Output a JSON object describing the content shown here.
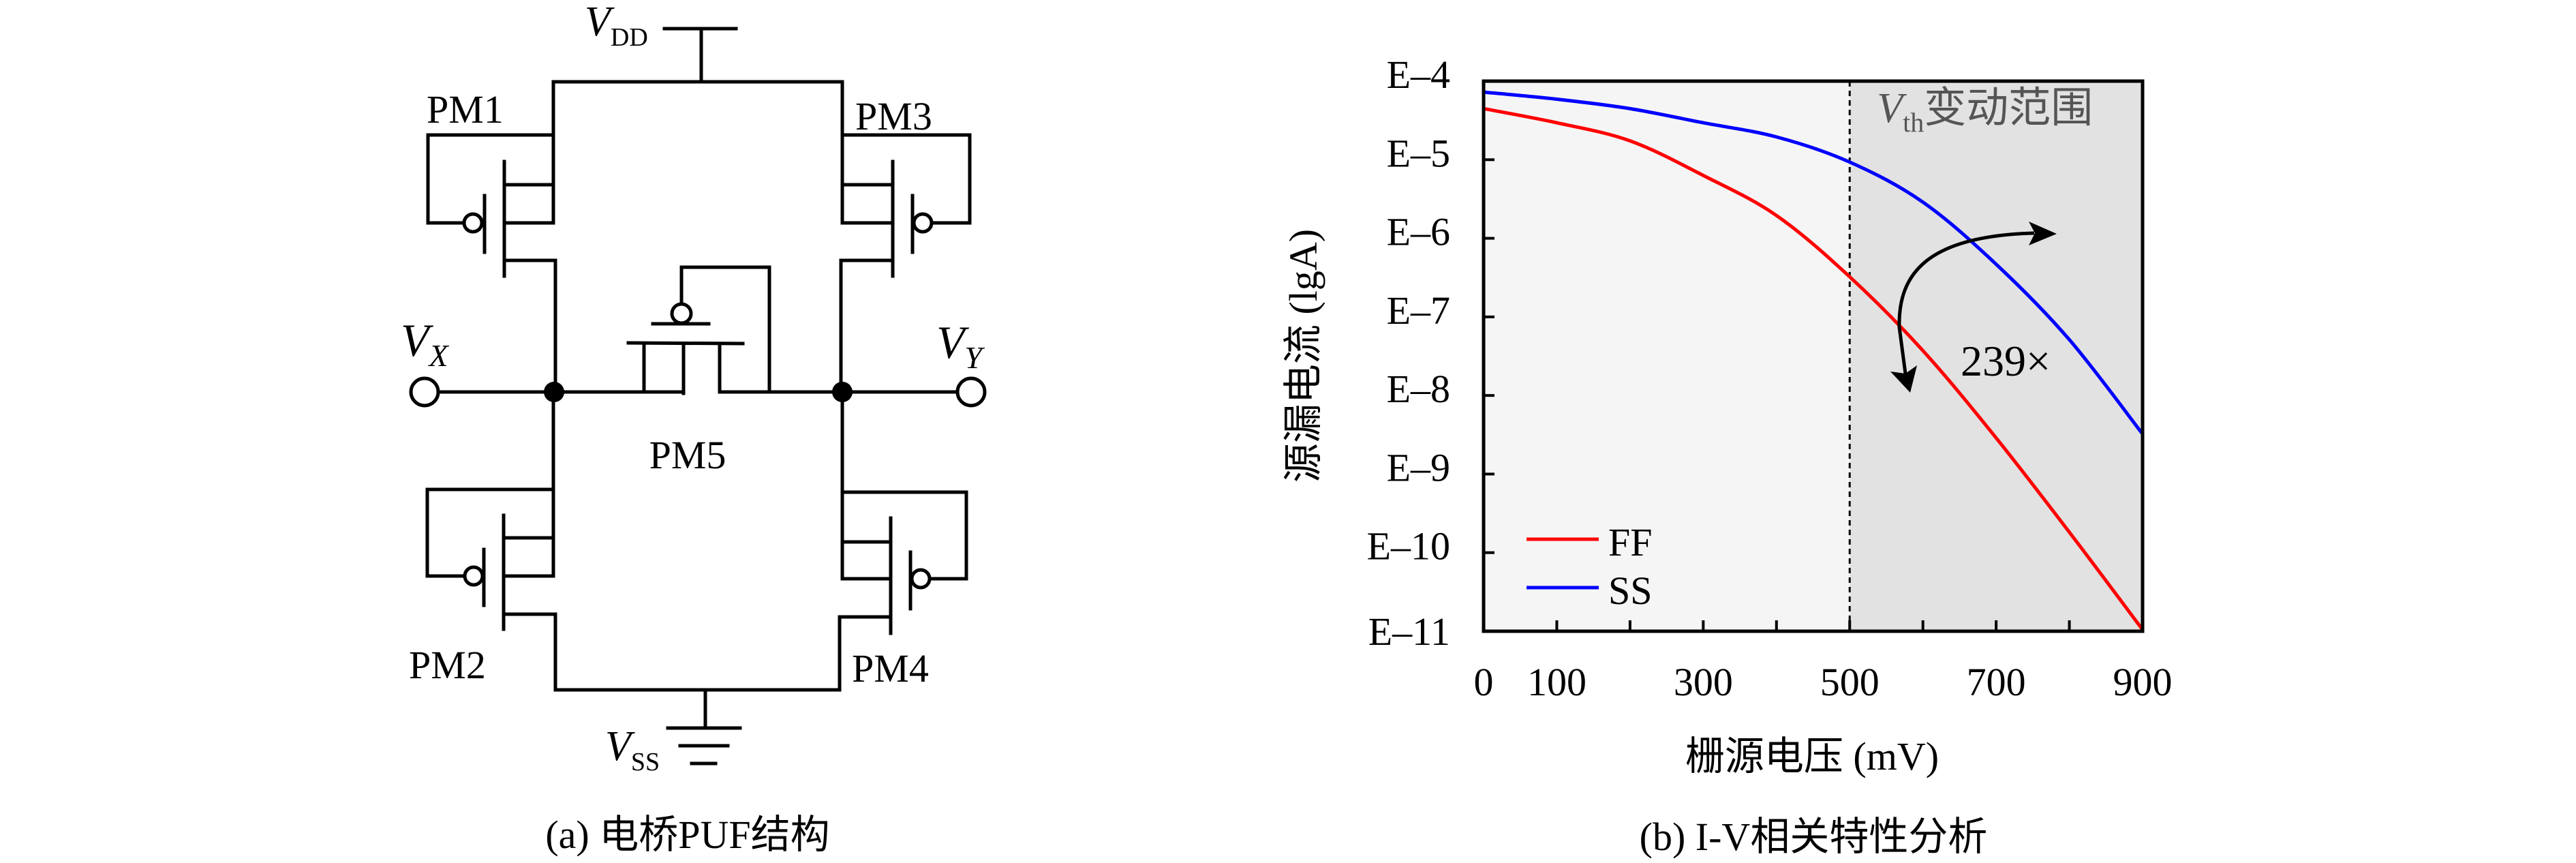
{
  "circuit": {
    "vdd": {
      "main": "V",
      "sub": "DD"
    },
    "vss": {
      "main": "V",
      "sub": "SS"
    },
    "vx": {
      "main": "V",
      "sub": "X"
    },
    "vy": {
      "main": "V",
      "sub": "Y"
    },
    "transistors": [
      "PM1",
      "PM2",
      "PM3",
      "PM4",
      "PM5"
    ],
    "caption": "(a) 电桥PUF结构"
  },
  "chart_data": {
    "type": "line",
    "title": "",
    "caption": "(b) I-V相关特性分析",
    "xlabel": "栅源电压 (mV)",
    "ylabel": "源漏电流 (lgA)",
    "xlim": [
      0,
      900
    ],
    "ylim": [
      -11,
      -4
    ],
    "x_ticks": [
      0,
      100,
      200,
      300,
      400,
      500,
      600,
      700,
      800,
      900
    ],
    "x_tick_labels": [
      {
        "value": 0,
        "label": "0"
      },
      {
        "value": 100,
        "label": "100"
      },
      {
        "value": 300,
        "label": "300"
      },
      {
        "value": 500,
        "label": "500"
      },
      {
        "value": 700,
        "label": "700"
      },
      {
        "value": 900,
        "label": "900"
      }
    ],
    "y_tick_labels": [
      {
        "value": -4,
        "label": "E–4"
      },
      {
        "value": -5,
        "label": "E–5"
      },
      {
        "value": -6,
        "label": "E–6"
      },
      {
        "value": -7,
        "label": "E–7"
      },
      {
        "value": -8,
        "label": "E–8"
      },
      {
        "value": -9,
        "label": "E–9"
      },
      {
        "value": -10,
        "label": "E–10"
      },
      {
        "value": -11,
        "label": "E–11"
      }
    ],
    "x": [
      0,
      100,
      200,
      300,
      400,
      500,
      600,
      700,
      800,
      900
    ],
    "series": [
      {
        "name": "FF",
        "color": "#ff0000",
        "values": [
          -4.35,
          -4.53,
          -4.76,
          -5.2,
          -5.71,
          -6.49,
          -7.43,
          -8.54,
          -9.74,
          -10.98
        ]
      },
      {
        "name": "SS",
        "color": "#0000ff",
        "values": [
          -4.14,
          -4.23,
          -4.35,
          -4.53,
          -4.71,
          -5.03,
          -5.54,
          -6.33,
          -7.29,
          -8.49
        ]
      }
    ],
    "shaded_region": {
      "from": 500,
      "to": 900,
      "label_main": "V",
      "label_sub": "th",
      "label_rest": "变动范围",
      "color": "#e2e2e2"
    },
    "background_color": "#f5f5f5",
    "vline": 500,
    "annotation": {
      "text": "239×",
      "color": "#0000dd"
    },
    "legend": {
      "position": "bottom-left"
    },
    "grid": false
  }
}
